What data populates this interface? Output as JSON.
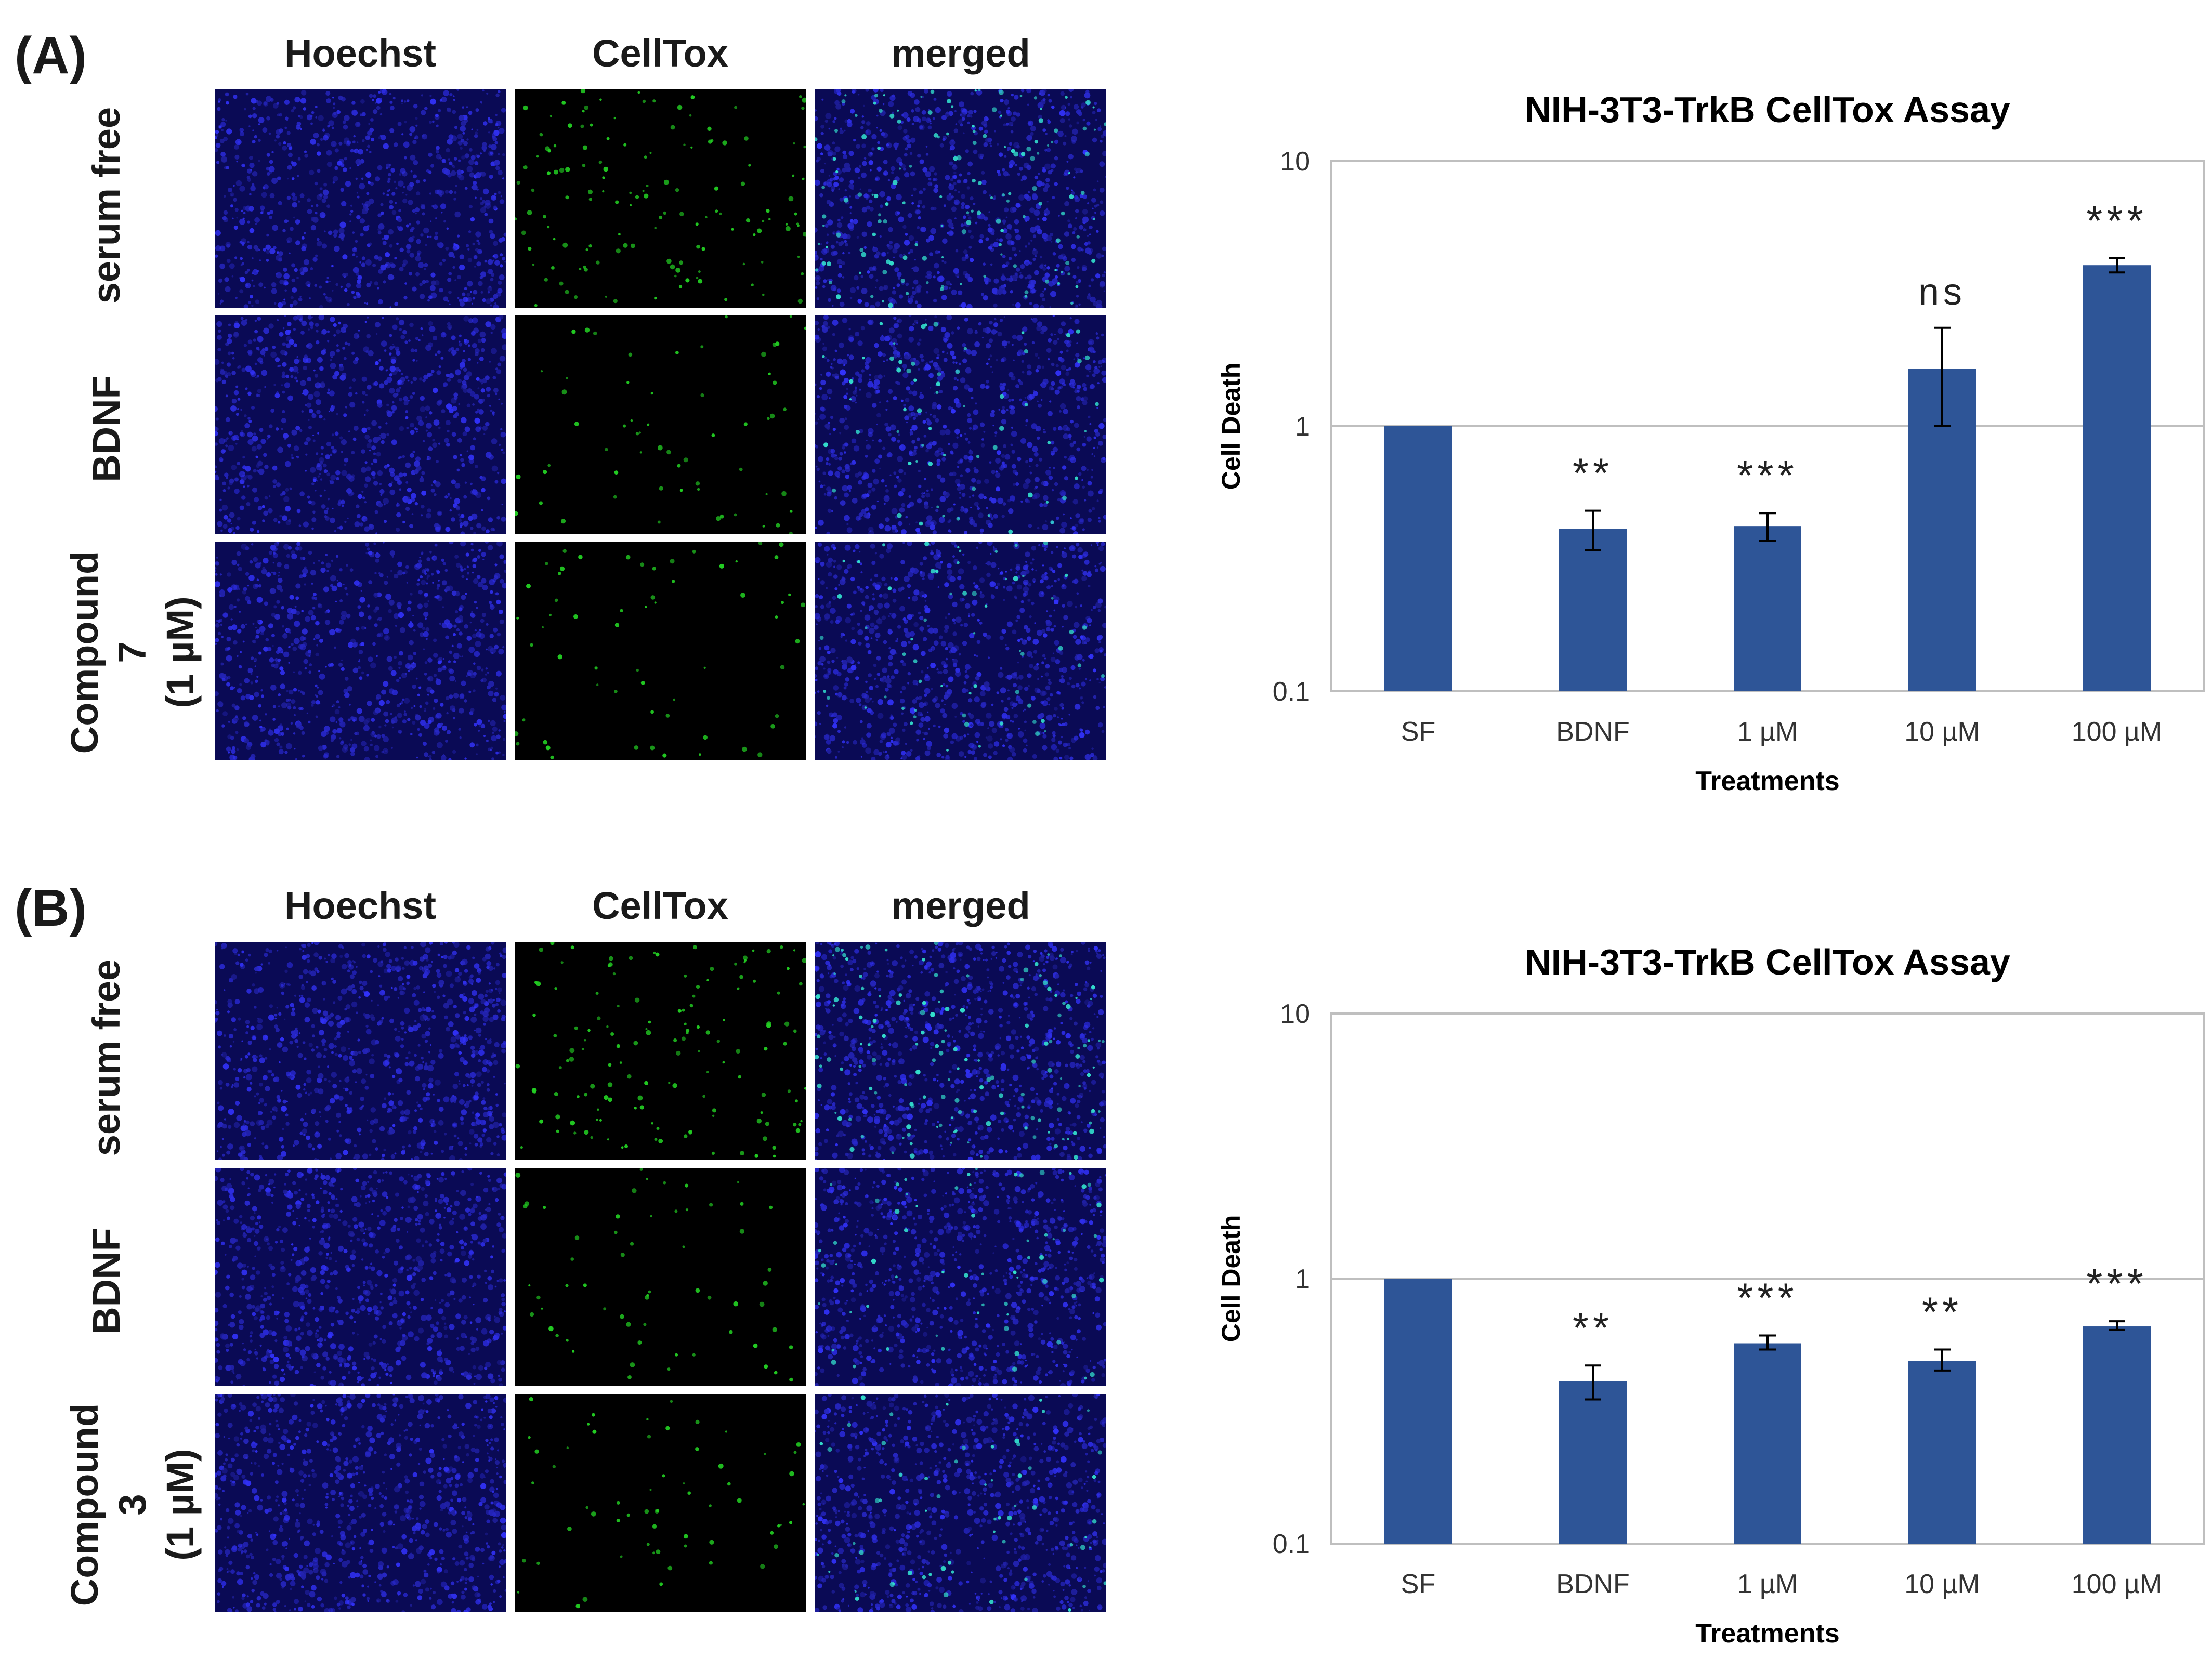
{
  "panels": [
    {
      "label": "(A)",
      "columns": [
        "Hoechst",
        "CellTox",
        "merged"
      ],
      "rows": [
        {
          "lines": [
            "serum free"
          ]
        },
        {
          "lines": [
            "BDNF"
          ]
        },
        {
          "lines": [
            "Compound 7",
            "(1 µM)"
          ]
        }
      ]
    },
    {
      "label": "(B)",
      "columns": [
        "Hoechst",
        "CellTox",
        "merged"
      ],
      "rows": [
        {
          "lines": [
            "serum free"
          ]
        },
        {
          "lines": [
            "BDNF"
          ]
        },
        {
          "lines": [
            "Compound 3",
            "(1 µM)"
          ]
        }
      ]
    }
  ],
  "colors": {
    "bar": "#2e5597",
    "hoechst": "#2a2aff",
    "celltox": "#22cc22",
    "axis": "#bfbfbf"
  },
  "chart_data": [
    {
      "type": "bar",
      "title": "NIH-3T3-TrkB CellTox Assay",
      "xlabel": "Treatments",
      "ylabel": "Cell Death",
      "yscale": "log",
      "ylim": [
        0.1,
        10
      ],
      "yticks": [
        "0.1",
        "1",
        "10"
      ],
      "categories": [
        "SF",
        "BDNF",
        "1 µM",
        "10 µM",
        "100 µM"
      ],
      "values": [
        1.0,
        0.41,
        0.42,
        1.65,
        4.05
      ],
      "error_low": [
        1.0,
        0.34,
        0.37,
        1.0,
        3.8
      ],
      "error_high": [
        1.0,
        0.48,
        0.47,
        2.35,
        4.3
      ],
      "annotations": [
        "",
        "**",
        "***",
        "ns",
        "***"
      ],
      "reference_line": 1
    },
    {
      "type": "bar",
      "title": "NIH-3T3-TrkB CellTox Assay",
      "xlabel": "Treatments",
      "ylabel": "Cell Death",
      "yscale": "log",
      "ylim": [
        0.1,
        10
      ],
      "yticks": [
        "0.1",
        "1",
        "10"
      ],
      "categories": [
        "SF",
        "BDNF",
        "1 µM",
        "10 µM",
        "100 µM"
      ],
      "values": [
        1.0,
        0.41,
        0.57,
        0.49,
        0.66
      ],
      "error_low": [
        1.0,
        0.35,
        0.54,
        0.45,
        0.64
      ],
      "error_high": [
        1.0,
        0.47,
        0.61,
        0.54,
        0.69
      ],
      "annotations": [
        "",
        "**",
        "***",
        "**",
        "***"
      ],
      "reference_line": 1
    }
  ]
}
